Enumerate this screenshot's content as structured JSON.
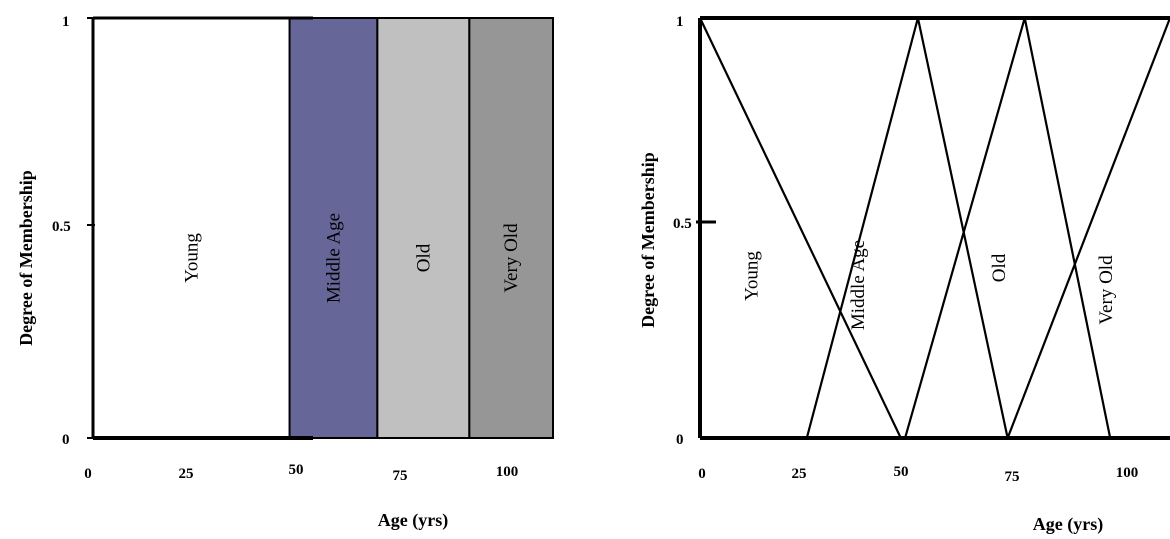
{
  "chart_data": [
    {
      "type": "area",
      "subtype": "crisp-membership",
      "xlabel": "Age (yrs)",
      "ylabel": "Degree of Membership",
      "x_ticks": [
        "0",
        "25",
        "50",
        "75",
        "100"
      ],
      "y_ticks": [
        "0",
        "0.5",
        "1"
      ],
      "xlim": [
        0,
        110
      ],
      "ylim": [
        0,
        1
      ],
      "sets": [
        {
          "name": "Young",
          "from": 0,
          "to": 47,
          "color": "#ffffff"
        },
        {
          "name": "Middle Age",
          "from": 47,
          "to": 68,
          "color": "#666699"
        },
        {
          "name": "Old",
          "from": 68,
          "to": 90,
          "color": "#c0c0c0"
        },
        {
          "name": "Very Old",
          "from": 90,
          "to": 110,
          "color": "#969696"
        }
      ]
    },
    {
      "type": "line",
      "subtype": "fuzzy-membership",
      "xlabel": "Age (yrs)",
      "ylabel": "Degree of Membership",
      "x_ticks": [
        "0",
        "25",
        "50",
        "75",
        "100"
      ],
      "y_ticks": [
        "0",
        "0.5",
        "1"
      ],
      "xlim": [
        0,
        110
      ],
      "ylim": [
        0,
        1
      ],
      "series": [
        {
          "name": "Young",
          "points": [
            [
              0,
              1
            ],
            [
              47,
              0
            ]
          ]
        },
        {
          "name": "Middle Age",
          "points": [
            [
              25,
              0
            ],
            [
              51,
              1
            ],
            [
              72,
              0
            ]
          ]
        },
        {
          "name": "Old",
          "points": [
            [
              48,
              0
            ],
            [
              76,
              1
            ],
            [
              96,
              0
            ]
          ]
        },
        {
          "name": "Very Old",
          "points": [
            [
              72,
              0
            ],
            [
              110,
              1
            ]
          ]
        }
      ]
    }
  ]
}
